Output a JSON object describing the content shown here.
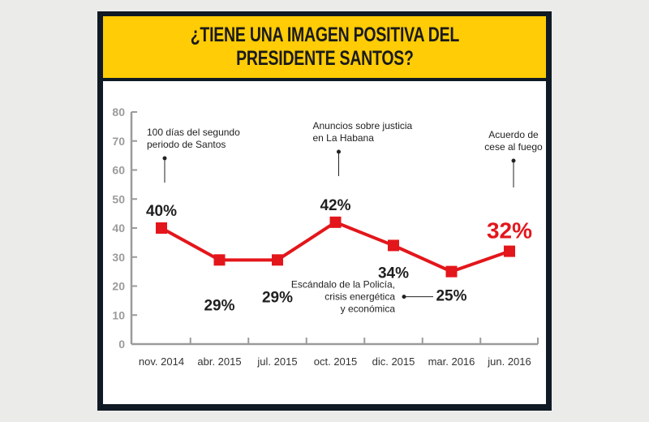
{
  "header": {
    "title": "¿TIENE UNA IMAGEN POSITIVA DEL\nPRESIDENTE SANTOS?"
  },
  "colors": {
    "header_bg": "#ffcc05",
    "frame": "#0f1a24",
    "line": "#e3161b",
    "axis": "#9b9b9b",
    "highlight": "#e3161b"
  },
  "chart_data": {
    "type": "line",
    "title": "¿TIENE UNA IMAGEN POSITIVA DEL PRESIDENTE SANTOS?",
    "xlabel": "",
    "ylabel": "",
    "ylim": [
      0,
      80
    ],
    "yticks": [
      0,
      10,
      20,
      30,
      40,
      50,
      60,
      70,
      80
    ],
    "grid": false,
    "categories": [
      "nov. 2014",
      "abr. 2015",
      "jul. 2015",
      "oct. 2015",
      "dic. 2015",
      "mar. 2016",
      "jun. 2016"
    ],
    "series": [
      {
        "name": "Imagen positiva",
        "values": [
          40,
          29,
          29,
          42,
          34,
          25,
          32
        ],
        "labels": [
          "40%",
          "29%",
          "29%",
          "42%",
          "34%",
          "25%",
          "32%"
        ],
        "highlight_index": 6
      }
    ],
    "annotations": [
      {
        "category": "nov. 2014",
        "text": [
          "100 días del segundo",
          "periodo de Santos"
        ]
      },
      {
        "category": "oct. 2015",
        "text": [
          "Anuncios sobre justicia",
          "en La Habana"
        ]
      },
      {
        "category": "mar. 2016",
        "text": [
          "Escándalo de la Policía,",
          "crisis energética",
          "y económica"
        ]
      },
      {
        "category": "jun. 2016",
        "text": [
          "Acuerdo de",
          "cese al fuego"
        ]
      }
    ]
  }
}
